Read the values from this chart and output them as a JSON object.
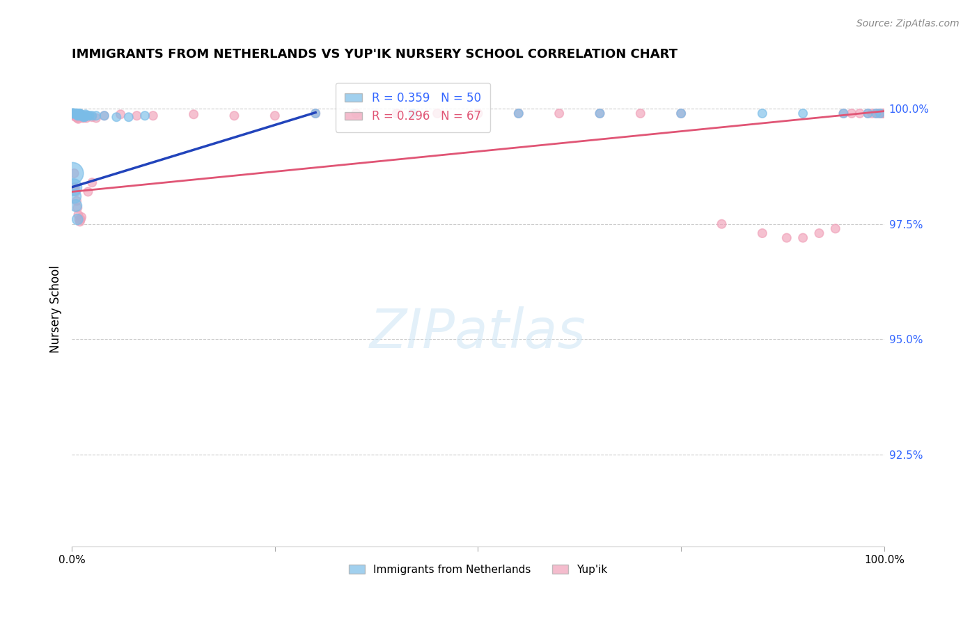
{
  "title": "IMMIGRANTS FROM NETHERLANDS VS YUP'IK NURSERY SCHOOL CORRELATION CHART",
  "source": "Source: ZipAtlas.com",
  "ylabel": "Nursery School",
  "y_tick_labels": [
    "100.0%",
    "97.5%",
    "95.0%",
    "92.5%"
  ],
  "y_tick_values": [
    1.0,
    0.975,
    0.95,
    0.925
  ],
  "x_range": [
    0.0,
    1.0
  ],
  "y_range": [
    0.905,
    1.008
  ],
  "blue_color": "#7abde8",
  "pink_color": "#f0a0b8",
  "blue_line_color": "#2244bb",
  "pink_line_color": "#e05575",
  "blue_scatter_x": [
    0.001,
    0.002,
    0.003,
    0.003,
    0.004,
    0.004,
    0.005,
    0.005,
    0.006,
    0.006,
    0.007,
    0.007,
    0.008,
    0.008,
    0.009,
    0.009,
    0.01,
    0.01,
    0.011,
    0.012,
    0.013,
    0.014,
    0.015,
    0.016,
    0.017,
    0.018,
    0.02,
    0.022,
    0.025,
    0.03,
    0.04,
    0.055,
    0.07,
    0.09,
    0.001,
    0.002,
    0.003,
    0.005,
    0.007,
    0.3,
    0.42,
    0.55,
    0.65,
    0.75,
    0.85,
    0.9,
    0.95,
    0.98,
    0.99,
    0.995
  ],
  "blue_scatter_y": [
    0.999,
    0.999,
    0.999,
    0.999,
    0.999,
    0.999,
    0.999,
    0.999,
    0.999,
    0.999,
    0.999,
    0.9985,
    0.9988,
    0.9985,
    0.999,
    0.9988,
    0.999,
    0.9985,
    0.9988,
    0.9985,
    0.9985,
    0.9982,
    0.9985,
    0.9982,
    0.9988,
    0.9985,
    0.9985,
    0.9985,
    0.9985,
    0.9985,
    0.9985,
    0.9982,
    0.9982,
    0.9985,
    0.986,
    0.983,
    0.981,
    0.979,
    0.976,
    0.999,
    0.999,
    0.999,
    0.999,
    0.999,
    0.999,
    0.999,
    0.999,
    0.999,
    0.999,
    0.999
  ],
  "blue_scatter_sizes": [
    100,
    80,
    80,
    80,
    80,
    80,
    80,
    80,
    80,
    80,
    80,
    80,
    80,
    80,
    80,
    80,
    80,
    80,
    80,
    80,
    80,
    80,
    80,
    80,
    80,
    80,
    80,
    80,
    80,
    80,
    80,
    80,
    80,
    80,
    500,
    300,
    200,
    150,
    120,
    80,
    80,
    80,
    80,
    80,
    80,
    80,
    80,
    80,
    80,
    80
  ],
  "pink_scatter_x": [
    0.001,
    0.002,
    0.003,
    0.004,
    0.005,
    0.006,
    0.007,
    0.008,
    0.009,
    0.01,
    0.011,
    0.012,
    0.013,
    0.014,
    0.015,
    0.016,
    0.018,
    0.02,
    0.025,
    0.03,
    0.003,
    0.004,
    0.005,
    0.006,
    0.007,
    0.008,
    0.009,
    0.01,
    0.011,
    0.012,
    0.04,
    0.06,
    0.08,
    0.1,
    0.15,
    0.2,
    0.25,
    0.02,
    0.025,
    0.3,
    0.35,
    0.4,
    0.45,
    0.5,
    0.55,
    0.6,
    0.65,
    0.7,
    0.75,
    0.8,
    0.85,
    0.88,
    0.9,
    0.92,
    0.94,
    0.95,
    0.96,
    0.97,
    0.98,
    0.985,
    0.99,
    0.993,
    0.995,
    0.997,
    0.999,
    0.999
  ],
  "pink_scatter_y": [
    0.999,
    0.9985,
    0.9988,
    0.9985,
    0.9982,
    0.9985,
    0.998,
    0.9978,
    0.9982,
    0.9985,
    0.9988,
    0.9985,
    0.9982,
    0.998,
    0.9985,
    0.9982,
    0.998,
    0.9985,
    0.9982,
    0.998,
    0.986,
    0.983,
    0.982,
    0.98,
    0.9785,
    0.977,
    0.976,
    0.9755,
    0.976,
    0.9765,
    0.9985,
    0.9988,
    0.9985,
    0.9985,
    0.9988,
    0.9985,
    0.9985,
    0.982,
    0.984,
    0.999,
    0.999,
    0.999,
    0.999,
    0.999,
    0.999,
    0.999,
    0.999,
    0.999,
    0.999,
    0.975,
    0.973,
    0.972,
    0.972,
    0.973,
    0.974,
    0.999,
    0.999,
    0.999,
    0.999,
    0.999,
    0.999,
    0.999,
    0.999,
    0.999,
    0.999,
    0.999
  ],
  "pink_scatter_sizes": [
    80,
    80,
    80,
    80,
    80,
    80,
    80,
    80,
    80,
    80,
    80,
    80,
    80,
    80,
    80,
    80,
    80,
    80,
    80,
    80,
    80,
    80,
    80,
    80,
    80,
    80,
    80,
    80,
    80,
    80,
    80,
    80,
    80,
    80,
    80,
    80,
    80,
    80,
    80,
    80,
    80,
    80,
    80,
    80,
    80,
    80,
    80,
    80,
    80,
    80,
    80,
    80,
    80,
    80,
    80,
    80,
    80,
    80,
    80,
    80,
    80,
    80,
    80,
    80,
    80,
    80
  ],
  "blue_trend_x": [
    0.0,
    0.3
  ],
  "blue_trend_y": [
    0.983,
    0.9992
  ],
  "pink_trend_x": [
    0.0,
    1.0
  ],
  "pink_trend_y": [
    0.982,
    0.9995
  ]
}
